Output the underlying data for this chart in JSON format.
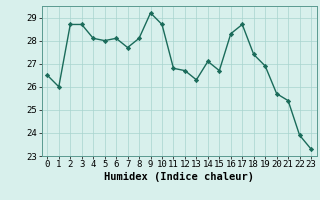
{
  "x": [
    0,
    1,
    2,
    3,
    4,
    5,
    6,
    7,
    8,
    9,
    10,
    11,
    12,
    13,
    14,
    15,
    16,
    17,
    18,
    19,
    20,
    21,
    22,
    23
  ],
  "y": [
    26.5,
    26.0,
    28.7,
    28.7,
    28.1,
    28.0,
    28.1,
    27.7,
    28.1,
    29.2,
    28.7,
    26.8,
    26.7,
    26.3,
    27.1,
    26.7,
    28.3,
    28.7,
    27.4,
    26.9,
    25.7,
    25.4,
    23.9,
    23.3
  ],
  "line_color": "#1a6b5a",
  "marker": "D",
  "markersize": 2.2,
  "linewidth": 1.0,
  "background_color": "#d8f0ec",
  "grid_color": "#a8d4ce",
  "xlabel": "Humidex (Indice chaleur)",
  "ylabel": "",
  "ylim": [
    23,
    29.5
  ],
  "xlim": [
    -0.5,
    23.5
  ],
  "yticks": [
    23,
    24,
    25,
    26,
    27,
    28,
    29
  ],
  "xticks": [
    0,
    1,
    2,
    3,
    4,
    5,
    6,
    7,
    8,
    9,
    10,
    11,
    12,
    13,
    14,
    15,
    16,
    17,
    18,
    19,
    20,
    21,
    22,
    23
  ],
  "tick_fontsize": 6.5,
  "label_fontsize": 7.5
}
